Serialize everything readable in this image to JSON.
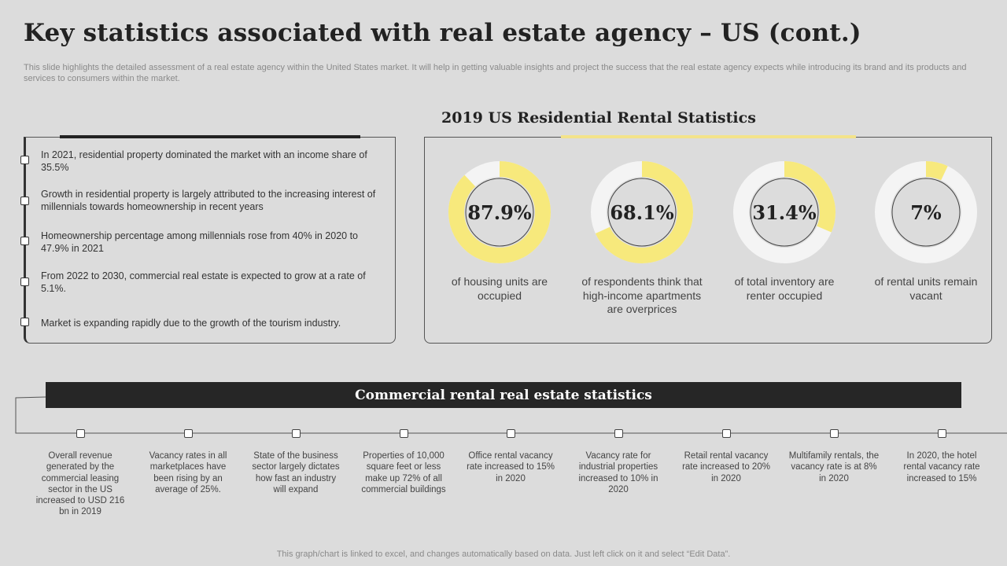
{
  "title": "Key statistics associated with real estate agency – US (cont.)",
  "subtitle": "This slide highlights the detailed assessment of a real estate agency within the United States market. It will help in getting valuable insights and project the success that the real estate agency expects while introducing its brand and its products and services to consumers within the market.",
  "bullets": [
    "In 2021, residential property dominated the market with an income share of 35.5%",
    "Growth in residential property is largely attributed to the increasing interest of millennials towards homeownership in recent years",
    "Homeownership percentage among millennials rose from 40% in 2020 to 47.9% in 2021",
    "From 2022 to 2030, commercial real estate is expected to grow at a rate of 5.1%.",
    "Market is expanding rapidly due to the growth of the tourism industry."
  ],
  "rental_heading": "2019 US Residential Rental Statistics",
  "donuts": [
    {
      "value": 87.9,
      "display": "87.9%",
      "label": "of housing units are occupied"
    },
    {
      "value": 68.1,
      "display": "68.1%",
      "label": "of respondents think that high-income apartments are overprices"
    },
    {
      "value": 31.4,
      "display": "31.4%",
      "label": "of total inventory are renter occupied"
    },
    {
      "value": 7,
      "display": "7%",
      "label": "of rental units remain vacant"
    }
  ],
  "commercial_heading": "Commercial rental real estate statistics",
  "commercial_items": [
    "Overall revenue generated by the commercial leasing sector in the US increased to USD 216 bn in 2019",
    "Vacancy rates in all marketplaces have been rising by an average of 25%.",
    "State of the business sector largely dictates how fast an industry will expand",
    "Properties of 10,000 square feet or less make up 72% of all commercial buildings",
    "Office rental vacancy rate increased to 15% in 2020",
    "Vacancy rate for industrial properties increased to 10% in 2020",
    "Retail rental vacancy rate increased to 20% in 2020",
    "Multifamily rentals, the vacancy rate is at 8% in 2020",
    "In 2020, the hotel rental vacancy rate increased to 15%"
  ],
  "footer": "This graph/chart is linked to excel,  and changes automatically based on data. Just left click on it and select “Edit Data”.",
  "colors": {
    "accent": "#f7e97c",
    "ring_bg": "#f4f4f4",
    "dark": "#262626"
  }
}
